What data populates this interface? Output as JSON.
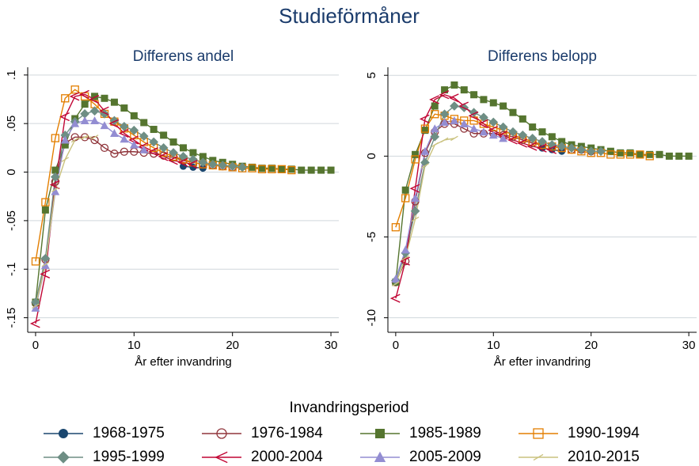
{
  "title": "Studieförmåner",
  "legend": {
    "title": "Invandringsperiod"
  },
  "chart_data": [
    {
      "type": "line",
      "title": "Differens andel",
      "xlabel": "År efter invandring",
      "xlim": [
        -0.8,
        30.8
      ],
      "xticks": [
        0,
        10,
        20,
        30
      ],
      "ylim": [
        -0.165,
        0.108
      ],
      "yticks": [
        {
          "value": 0.1,
          "label": ".1"
        },
        {
          "value": 0.05,
          "label": ".05"
        },
        0,
        {
          "value": -0.05,
          "label": "-.05"
        },
        {
          "value": -0.1,
          "label": "-.1"
        },
        {
          "value": -0.15,
          "label": "-.15"
        }
      ],
      "grid": true,
      "series": [
        {
          "name": "1968-1975",
          "color": "#1a476f",
          "marker": "circle",
          "x": [
            15,
            16,
            17
          ],
          "values": [
            0.006,
            0.005,
            0.004
          ]
        },
        {
          "name": "1976-1984",
          "color": "#90353b",
          "marker": "circle-hollow",
          "x": [
            0,
            1,
            2,
            3,
            4,
            5,
            6,
            7,
            8,
            9,
            10,
            11,
            12,
            13,
            14,
            15,
            16,
            17,
            18,
            19,
            20
          ],
          "values": [
            -0.135,
            -0.09,
            -0.01,
            0.03,
            0.036,
            0.036,
            0.033,
            0.025,
            0.019,
            0.021,
            0.021,
            0.02,
            0.019,
            0.017,
            0.015,
            0.012,
            0.01,
            0.008,
            0.007,
            0.006,
            0.005
          ]
        },
        {
          "name": "1985-1989",
          "color": "#55752f",
          "marker": "square",
          "x": [
            0,
            1,
            2,
            3,
            4,
            5,
            6,
            7,
            8,
            9,
            10,
            11,
            12,
            13,
            14,
            15,
            16,
            17,
            18,
            19,
            20,
            21,
            22,
            23,
            24,
            25,
            26,
            27,
            28,
            29,
            30
          ],
          "values": [
            -0.134,
            -0.039,
            0.002,
            0.028,
            0.055,
            0.07,
            0.078,
            0.076,
            0.072,
            0.066,
            0.058,
            0.051,
            0.044,
            0.038,
            0.031,
            0.025,
            0.02,
            0.016,
            0.012,
            0.01,
            0.008,
            0.006,
            0.005,
            0.004,
            0.004,
            0.003,
            0.003,
            0.002,
            0.002,
            0.002,
            0.002
          ]
        },
        {
          "name": "1990-1994",
          "color": "#e37e00",
          "marker": "square-hollow",
          "x": [
            0,
            1,
            2,
            3,
            4,
            5,
            6,
            7,
            8,
            9,
            10,
            11,
            12,
            13,
            14,
            15,
            16,
            17,
            18,
            19,
            20,
            21,
            22,
            23,
            24,
            25,
            26
          ],
          "values": [
            -0.092,
            -0.031,
            0.035,
            0.076,
            0.085,
            0.078,
            0.07,
            0.06,
            0.052,
            0.045,
            0.038,
            0.031,
            0.025,
            0.02,
            0.016,
            0.013,
            0.01,
            0.008,
            0.007,
            0.006,
            0.005,
            0.004,
            0.004,
            0.003,
            0.003,
            0.003,
            0.002
          ]
        },
        {
          "name": "1995-1999",
          "color": "#6e8e84",
          "marker": "diamond",
          "x": [
            0,
            1,
            2,
            3,
            4,
            5,
            6,
            7,
            8,
            9,
            10,
            11,
            12,
            13,
            14,
            15,
            16,
            17,
            18,
            19,
            20,
            21
          ],
          "values": [
            -0.134,
            -0.089,
            -0.005,
            0.038,
            0.052,
            0.06,
            0.063,
            0.06,
            0.053,
            0.047,
            0.043,
            0.037,
            0.031,
            0.025,
            0.02,
            0.016,
            0.013,
            0.01,
            0.008,
            0.007,
            0.006,
            0.005
          ]
        },
        {
          "name": "2000-2004",
          "color": "#c10534",
          "marker": "vee",
          "x": [
            0,
            1,
            2,
            3,
            4,
            5,
            6,
            7,
            8,
            9,
            10,
            11,
            12,
            13,
            14,
            15,
            16
          ],
          "values": [
            -0.156,
            -0.105,
            -0.013,
            0.057,
            0.078,
            0.08,
            0.075,
            0.063,
            0.05,
            0.04,
            0.033,
            0.026,
            0.021,
            0.016,
            0.012,
            0.01,
            0.008
          ]
        },
        {
          "name": "2005-2009",
          "color": "#938dd2",
          "marker": "triangle",
          "x": [
            0,
            1,
            2,
            3,
            4,
            5,
            6,
            7,
            8,
            9,
            10,
            11
          ],
          "values": [
            -0.14,
            -0.096,
            -0.02,
            0.033,
            0.05,
            0.053,
            0.053,
            0.048,
            0.04,
            0.034,
            0.028,
            0.023
          ]
        },
        {
          "name": "2010-2015",
          "color": "#cac27e",
          "marker": "tick",
          "x": [
            0,
            1,
            2,
            3,
            4,
            5,
            6
          ],
          "values": [
            -0.138,
            -0.095,
            -0.018,
            0.013,
            0.033,
            0.036,
            0.036
          ]
        }
      ]
    },
    {
      "type": "line",
      "title": "Differens belopp",
      "xlabel": "År efter invandring",
      "xlim": [
        -0.8,
        30.8
      ],
      "xticks": [
        0,
        10,
        20,
        30
      ],
      "ylim": [
        -10.9,
        5.5
      ],
      "yticks": [
        5,
        0,
        -5,
        -10
      ],
      "grid": true,
      "series": [
        {
          "name": "1968-1975",
          "color": "#1a476f",
          "marker": "circle",
          "x": [
            15,
            16,
            17
          ],
          "values": [
            0.5,
            0.4,
            0.3
          ]
        },
        {
          "name": "1976-1984",
          "color": "#90353b",
          "marker": "circle-hollow",
          "x": [
            0,
            1,
            2,
            3,
            4,
            5,
            6,
            7,
            8,
            9,
            10,
            11,
            12,
            13,
            14,
            15,
            16,
            17,
            18,
            19,
            20
          ],
          "values": [
            -7.8,
            -6.5,
            -2.8,
            0.2,
            1.5,
            2.0,
            2.0,
            1.7,
            1.4,
            1.4,
            1.4,
            1.3,
            1.2,
            1.0,
            0.8,
            0.7,
            0.6,
            0.5,
            0.4,
            0.4,
            0.3
          ]
        },
        {
          "name": "1985-1989",
          "color": "#55752f",
          "marker": "square",
          "x": [
            0,
            1,
            2,
            3,
            4,
            5,
            6,
            7,
            8,
            9,
            10,
            11,
            12,
            13,
            14,
            15,
            16,
            17,
            18,
            19,
            20,
            21,
            22,
            23,
            24,
            25,
            26,
            27,
            28,
            29,
            30
          ],
          "values": [
            -7.8,
            -2.1,
            0.1,
            1.6,
            3.1,
            4.1,
            4.4,
            4.1,
            3.8,
            3.5,
            3.3,
            3.1,
            2.7,
            2.3,
            1.8,
            1.5,
            1.2,
            0.9,
            0.7,
            0.6,
            0.5,
            0.4,
            0.3,
            0.2,
            0.2,
            0.1,
            0.1,
            0.1,
            0.0,
            0.0,
            0.0
          ]
        },
        {
          "name": "1990-1994",
          "color": "#e37e00",
          "marker": "square-hollow",
          "x": [
            0,
            1,
            2,
            3,
            4,
            5,
            6,
            7,
            8,
            9,
            10,
            11,
            12,
            13,
            14,
            15,
            16,
            17,
            18,
            19,
            20,
            21,
            22,
            23,
            24,
            25,
            26
          ],
          "values": [
            -4.4,
            -2.6,
            -0.2,
            1.7,
            2.6,
            2.5,
            2.3,
            2.2,
            2.2,
            2.0,
            1.8,
            1.6,
            1.3,
            1.1,
            0.9,
            0.7,
            0.6,
            0.5,
            0.4,
            0.3,
            0.2,
            0.2,
            0.1,
            0.1,
            0.1,
            0.1,
            0.0
          ]
        },
        {
          "name": "1995-1999",
          "color": "#6e8e84",
          "marker": "diamond",
          "x": [
            0,
            1,
            2,
            3,
            4,
            5,
            6,
            7,
            8,
            9,
            10,
            11,
            12,
            13,
            14,
            15,
            16,
            17,
            18,
            19,
            20,
            21
          ],
          "values": [
            -7.7,
            -6.0,
            -3.4,
            -0.4,
            1.2,
            2.6,
            3.1,
            3.0,
            2.7,
            2.4,
            2.1,
            1.8,
            1.5,
            1.3,
            1.1,
            0.9,
            0.7,
            0.6,
            0.5,
            0.4,
            0.3,
            0.3
          ]
        },
        {
          "name": "2000-2004",
          "color": "#c10534",
          "marker": "vee",
          "x": [
            0,
            1,
            2,
            3,
            4,
            5,
            6,
            7,
            8,
            9,
            10,
            11,
            12,
            13,
            14,
            15,
            16
          ],
          "values": [
            -8.8,
            -6.5,
            -2.0,
            2.3,
            3.5,
            3.8,
            3.6,
            3.1,
            2.5,
            2.0,
            1.6,
            1.3,
            1.0,
            0.8,
            0.6,
            0.5,
            0.4
          ]
        },
        {
          "name": "2005-2009",
          "color": "#938dd2",
          "marker": "triangle",
          "x": [
            0,
            1,
            2,
            3,
            4,
            5,
            6,
            7,
            8,
            9,
            10,
            11
          ],
          "values": [
            -7.6,
            -5.8,
            -2.6,
            0.3,
            1.7,
            2.1,
            2.2,
            2.0,
            1.7,
            1.5,
            1.3,
            1.1
          ]
        },
        {
          "name": "2010-2015",
          "color": "#cac27e",
          "marker": "tick",
          "x": [
            0,
            1,
            2,
            3,
            4,
            5,
            6
          ],
          "values": [
            -7.9,
            -6.3,
            -3.9,
            -0.6,
            0.7,
            1.0,
            1.1
          ]
        }
      ]
    }
  ]
}
